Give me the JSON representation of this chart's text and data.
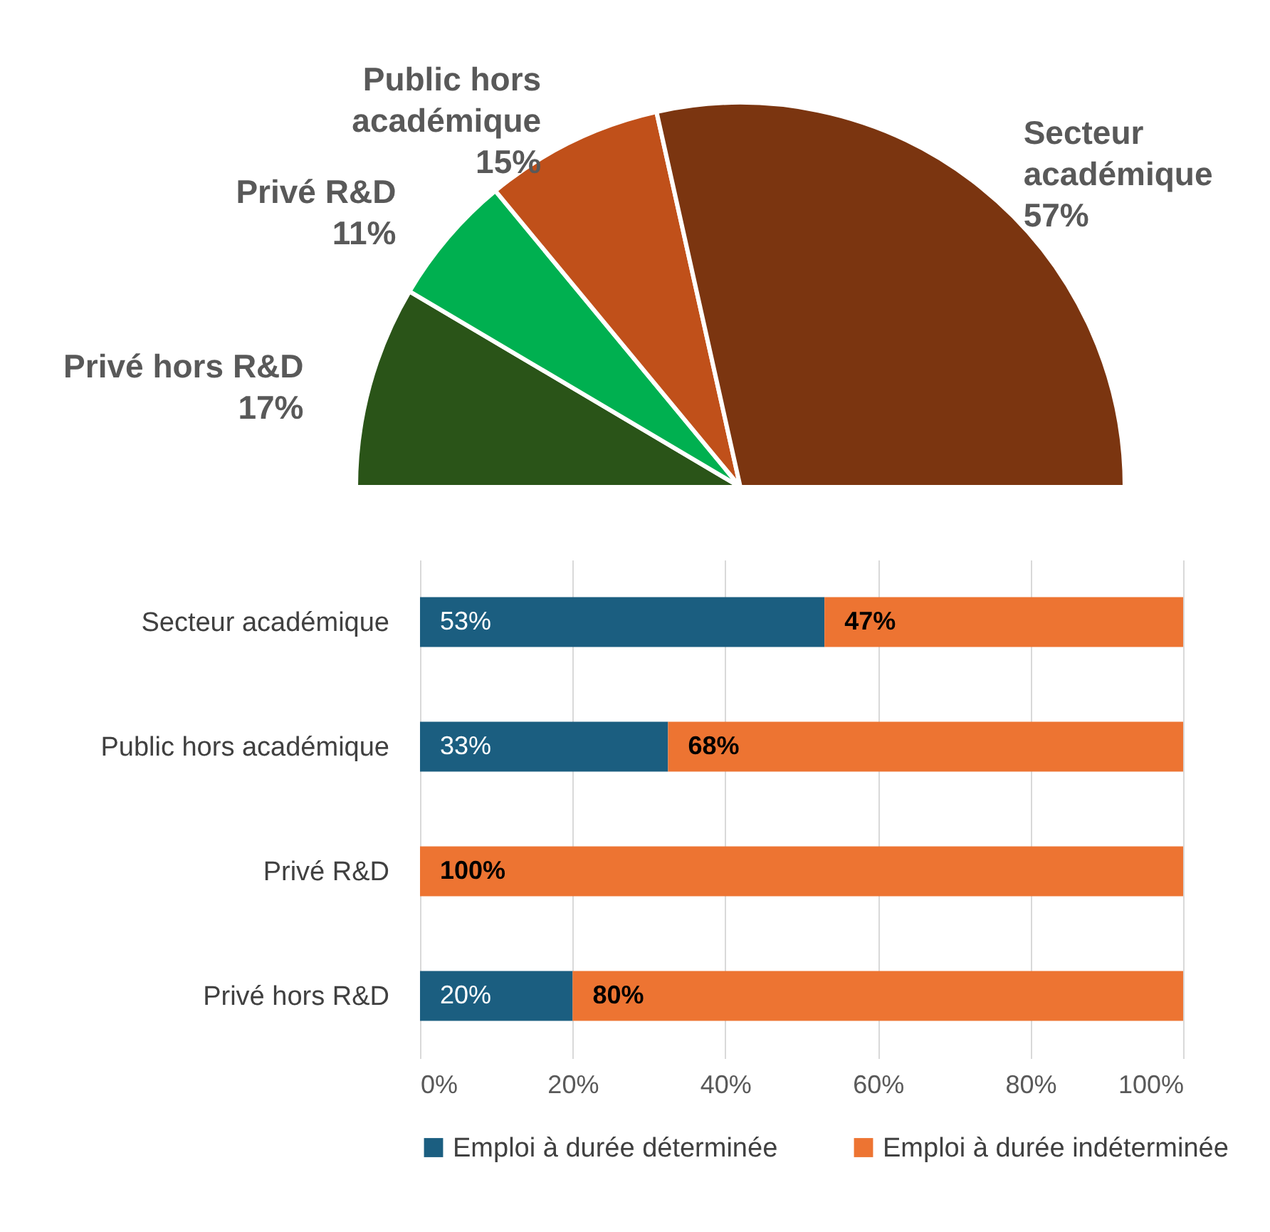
{
  "chart_data": [
    {
      "type": "pie",
      "categories": [
        "Privé hors R&D",
        "Privé R&D",
        "Public hors académique",
        "Secteur académique"
      ],
      "values": [
        17,
        11,
        15,
        57
      ],
      "value_labels": [
        "17%",
        "11%",
        "15%",
        "57%"
      ],
      "colors": [
        "#2a5418",
        "#00b050",
        "#c0501a",
        "#7b3510"
      ],
      "legend": false
    },
    {
      "type": "bar",
      "orientation": "horizontal",
      "stacked": true,
      "categories": [
        "Secteur académique",
        "Public hors académique",
        "Privé R&D",
        "Privé hors R&D"
      ],
      "series": [
        {
          "name": "Emploi à durée déterminée",
          "color": "#1b5e80",
          "values": [
            53,
            32.5,
            0,
            20
          ],
          "value_labels": [
            "53%",
            "33%",
            null,
            "20%"
          ]
        },
        {
          "name": "Emploi à durée indéterminée",
          "color": "#ed7432",
          "values": [
            47,
            67.5,
            100,
            80
          ],
          "value_labels": [
            "47%",
            "68%",
            "100%",
            "80%"
          ]
        }
      ],
      "xlim": [
        0,
        100
      ],
      "xticks": [
        {
          "value": 0,
          "label": "0%"
        },
        {
          "value": 20,
          "label": "20%"
        },
        {
          "value": 40,
          "label": "40%"
        },
        {
          "value": 60,
          "label": "60%"
        },
        {
          "value": 80,
          "label": "80%"
        },
        {
          "value": 100,
          "label": "100%"
        }
      ],
      "grid": "x",
      "legend": "bottom"
    }
  ]
}
